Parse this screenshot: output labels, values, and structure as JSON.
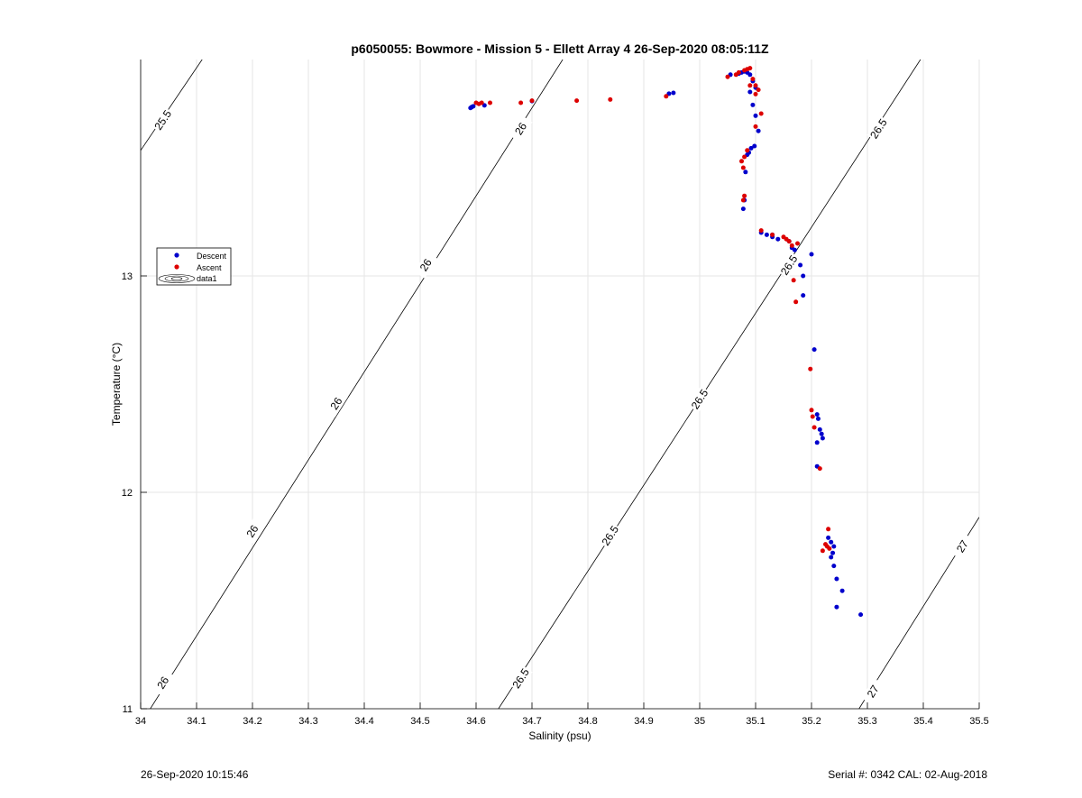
{
  "chart_data": {
    "type": "scatter",
    "title": "p6050055: Bowmore - Mission 5 - Ellett Array 4 26-Sep-2020 08:05:11Z",
    "xlabel": "Salinity (psu)",
    "ylabel": "Temperature (°C)",
    "xlim": [
      34,
      35.5
    ],
    "ylim": [
      11,
      14
    ],
    "xticks": [
      34,
      34.1,
      34.2,
      34.3,
      34.4,
      34.5,
      34.6,
      34.7,
      34.8,
      34.9,
      35,
      35.1,
      35.2,
      35.3,
      35.4,
      35.5
    ],
    "xtick_labels": [
      "34",
      "34.1",
      "34.2",
      "34.3",
      "34.4",
      "34.5",
      "34.6",
      "34.7",
      "34.8",
      "34.9",
      "35",
      "35.1",
      "35.2",
      "35.3",
      "35.4",
      "35.5"
    ],
    "yticks": [
      11,
      12,
      13
    ],
    "ytick_labels": [
      "11",
      "12",
      "13"
    ],
    "grid": true,
    "legend_placement": "left",
    "legend": [
      "Descent",
      "Ascent",
      "data1"
    ],
    "colors": {
      "descent": "#0000cc",
      "ascent": "#dd0000",
      "contour": "#000000",
      "grid": "#e6e6e6"
    },
    "series": [
      {
        "name": "Descent",
        "x": [
          34.59,
          34.592,
          34.595,
          34.615,
          34.7,
          34.945,
          34.953,
          35.055,
          35.07,
          35.075,
          35.08,
          35.085,
          35.09,
          35.095,
          35.1,
          35.09,
          35.095,
          35.1,
          35.105,
          35.098,
          35.092,
          35.088,
          35.085,
          35.082,
          35.08,
          35.078,
          35.11,
          35.12,
          35.13,
          35.13,
          35.14,
          35.16,
          35.165,
          35.17,
          35.18,
          35.185,
          35.185,
          35.2,
          35.205,
          35.21,
          35.212,
          35.215,
          35.218,
          35.22,
          35.21,
          35.21,
          35.23,
          35.235,
          35.24,
          35.238,
          35.235,
          35.24,
          35.245,
          35.255,
          35.245,
          35.288
        ],
        "y": [
          13.776,
          13.78,
          13.784,
          13.788,
          13.808,
          13.842,
          13.846,
          13.93,
          13.935,
          13.94,
          13.945,
          13.94,
          13.93,
          13.9,
          13.87,
          13.85,
          13.79,
          13.74,
          13.67,
          13.6,
          13.59,
          13.57,
          13.56,
          13.48,
          13.35,
          13.31,
          13.2,
          13.19,
          13.18,
          13.19,
          13.17,
          13.16,
          13.13,
          13.12,
          13.05,
          13.0,
          12.91,
          13.1,
          12.66,
          12.36,
          12.34,
          12.29,
          12.27,
          12.25,
          12.23,
          12.12,
          11.79,
          11.77,
          11.75,
          11.72,
          11.7,
          11.66,
          11.6,
          11.545,
          11.47,
          11.435
        ]
      },
      {
        "name": "Ascent",
        "x": [
          34.6,
          34.605,
          34.61,
          34.625,
          34.68,
          34.7,
          34.78,
          34.84,
          34.94,
          35.05,
          35.065,
          35.07,
          35.08,
          35.085,
          35.09,
          35.095,
          35.1,
          35.105,
          35.09,
          35.1,
          35.11,
          35.1,
          35.085,
          35.08,
          35.075,
          35.078,
          35.08,
          35.078,
          35.11,
          35.13,
          35.15,
          35.155,
          35.16,
          35.165,
          35.175,
          35.168,
          35.172,
          35.198,
          35.2,
          35.202,
          35.205,
          35.215,
          35.23,
          35.225,
          35.228,
          35.232,
          35.22
        ],
        "y": [
          13.8,
          13.795,
          13.8,
          13.8,
          13.8,
          13.81,
          13.81,
          13.815,
          13.83,
          13.92,
          13.93,
          13.94,
          13.95,
          13.955,
          13.96,
          13.91,
          13.88,
          13.86,
          13.88,
          13.84,
          13.75,
          13.69,
          13.58,
          13.55,
          13.53,
          13.5,
          13.37,
          13.35,
          13.21,
          13.19,
          13.18,
          13.17,
          13.16,
          13.14,
          13.15,
          12.98,
          12.88,
          12.57,
          12.38,
          12.35,
          12.3,
          12.11,
          11.83,
          11.76,
          11.75,
          11.74,
          11.73
        ]
      }
    ],
    "contours": [
      {
        "level": 25.5,
        "label": "25.5",
        "p1": [
          34,
          13.58
        ],
        "p2": [
          34.11,
          14
        ]
      },
      {
        "level": 26,
        "label": "26",
        "p1": [
          34,
          10.93
        ],
        "p2": [
          34.755,
          14
        ]
      },
      {
        "level": 26.5,
        "label": "26.5",
        "p1": [
          34.64,
          11
        ],
        "p2": [
          35.395,
          14
        ]
      },
      {
        "level": 27,
        "label": "27",
        "p1": [
          35.285,
          11
        ],
        "p2": [
          35.5,
          11.885
        ]
      }
    ],
    "contour_labels": [
      {
        "label": "25.5",
        "x": 34.04,
        "y": 13.72
      },
      {
        "label": "26",
        "x": 34.04,
        "y": 11.12
      },
      {
        "label": "26",
        "x": 34.2,
        "y": 11.82
      },
      {
        "label": "26",
        "x": 34.35,
        "y": 12.41
      },
      {
        "label": "26",
        "x": 34.51,
        "y": 13.05
      },
      {
        "label": "26",
        "x": 34.68,
        "y": 13.68
      },
      {
        "label": "26.5",
        "x": 34.68,
        "y": 11.14
      },
      {
        "label": "26.5",
        "x": 34.84,
        "y": 11.8
      },
      {
        "label": "26.5",
        "x": 35.0,
        "y": 12.43
      },
      {
        "label": "26.5",
        "x": 35.16,
        "y": 13.05
      },
      {
        "label": "26.5",
        "x": 35.32,
        "y": 13.68
      },
      {
        "label": "27",
        "x": 35.31,
        "y": 11.08
      },
      {
        "label": "27",
        "x": 35.47,
        "y": 11.75
      }
    ]
  },
  "footer": {
    "timestamp": "26-Sep-2020 10:15:46",
    "serial": "Serial #: 0342  CAL: 02-Aug-2018"
  }
}
